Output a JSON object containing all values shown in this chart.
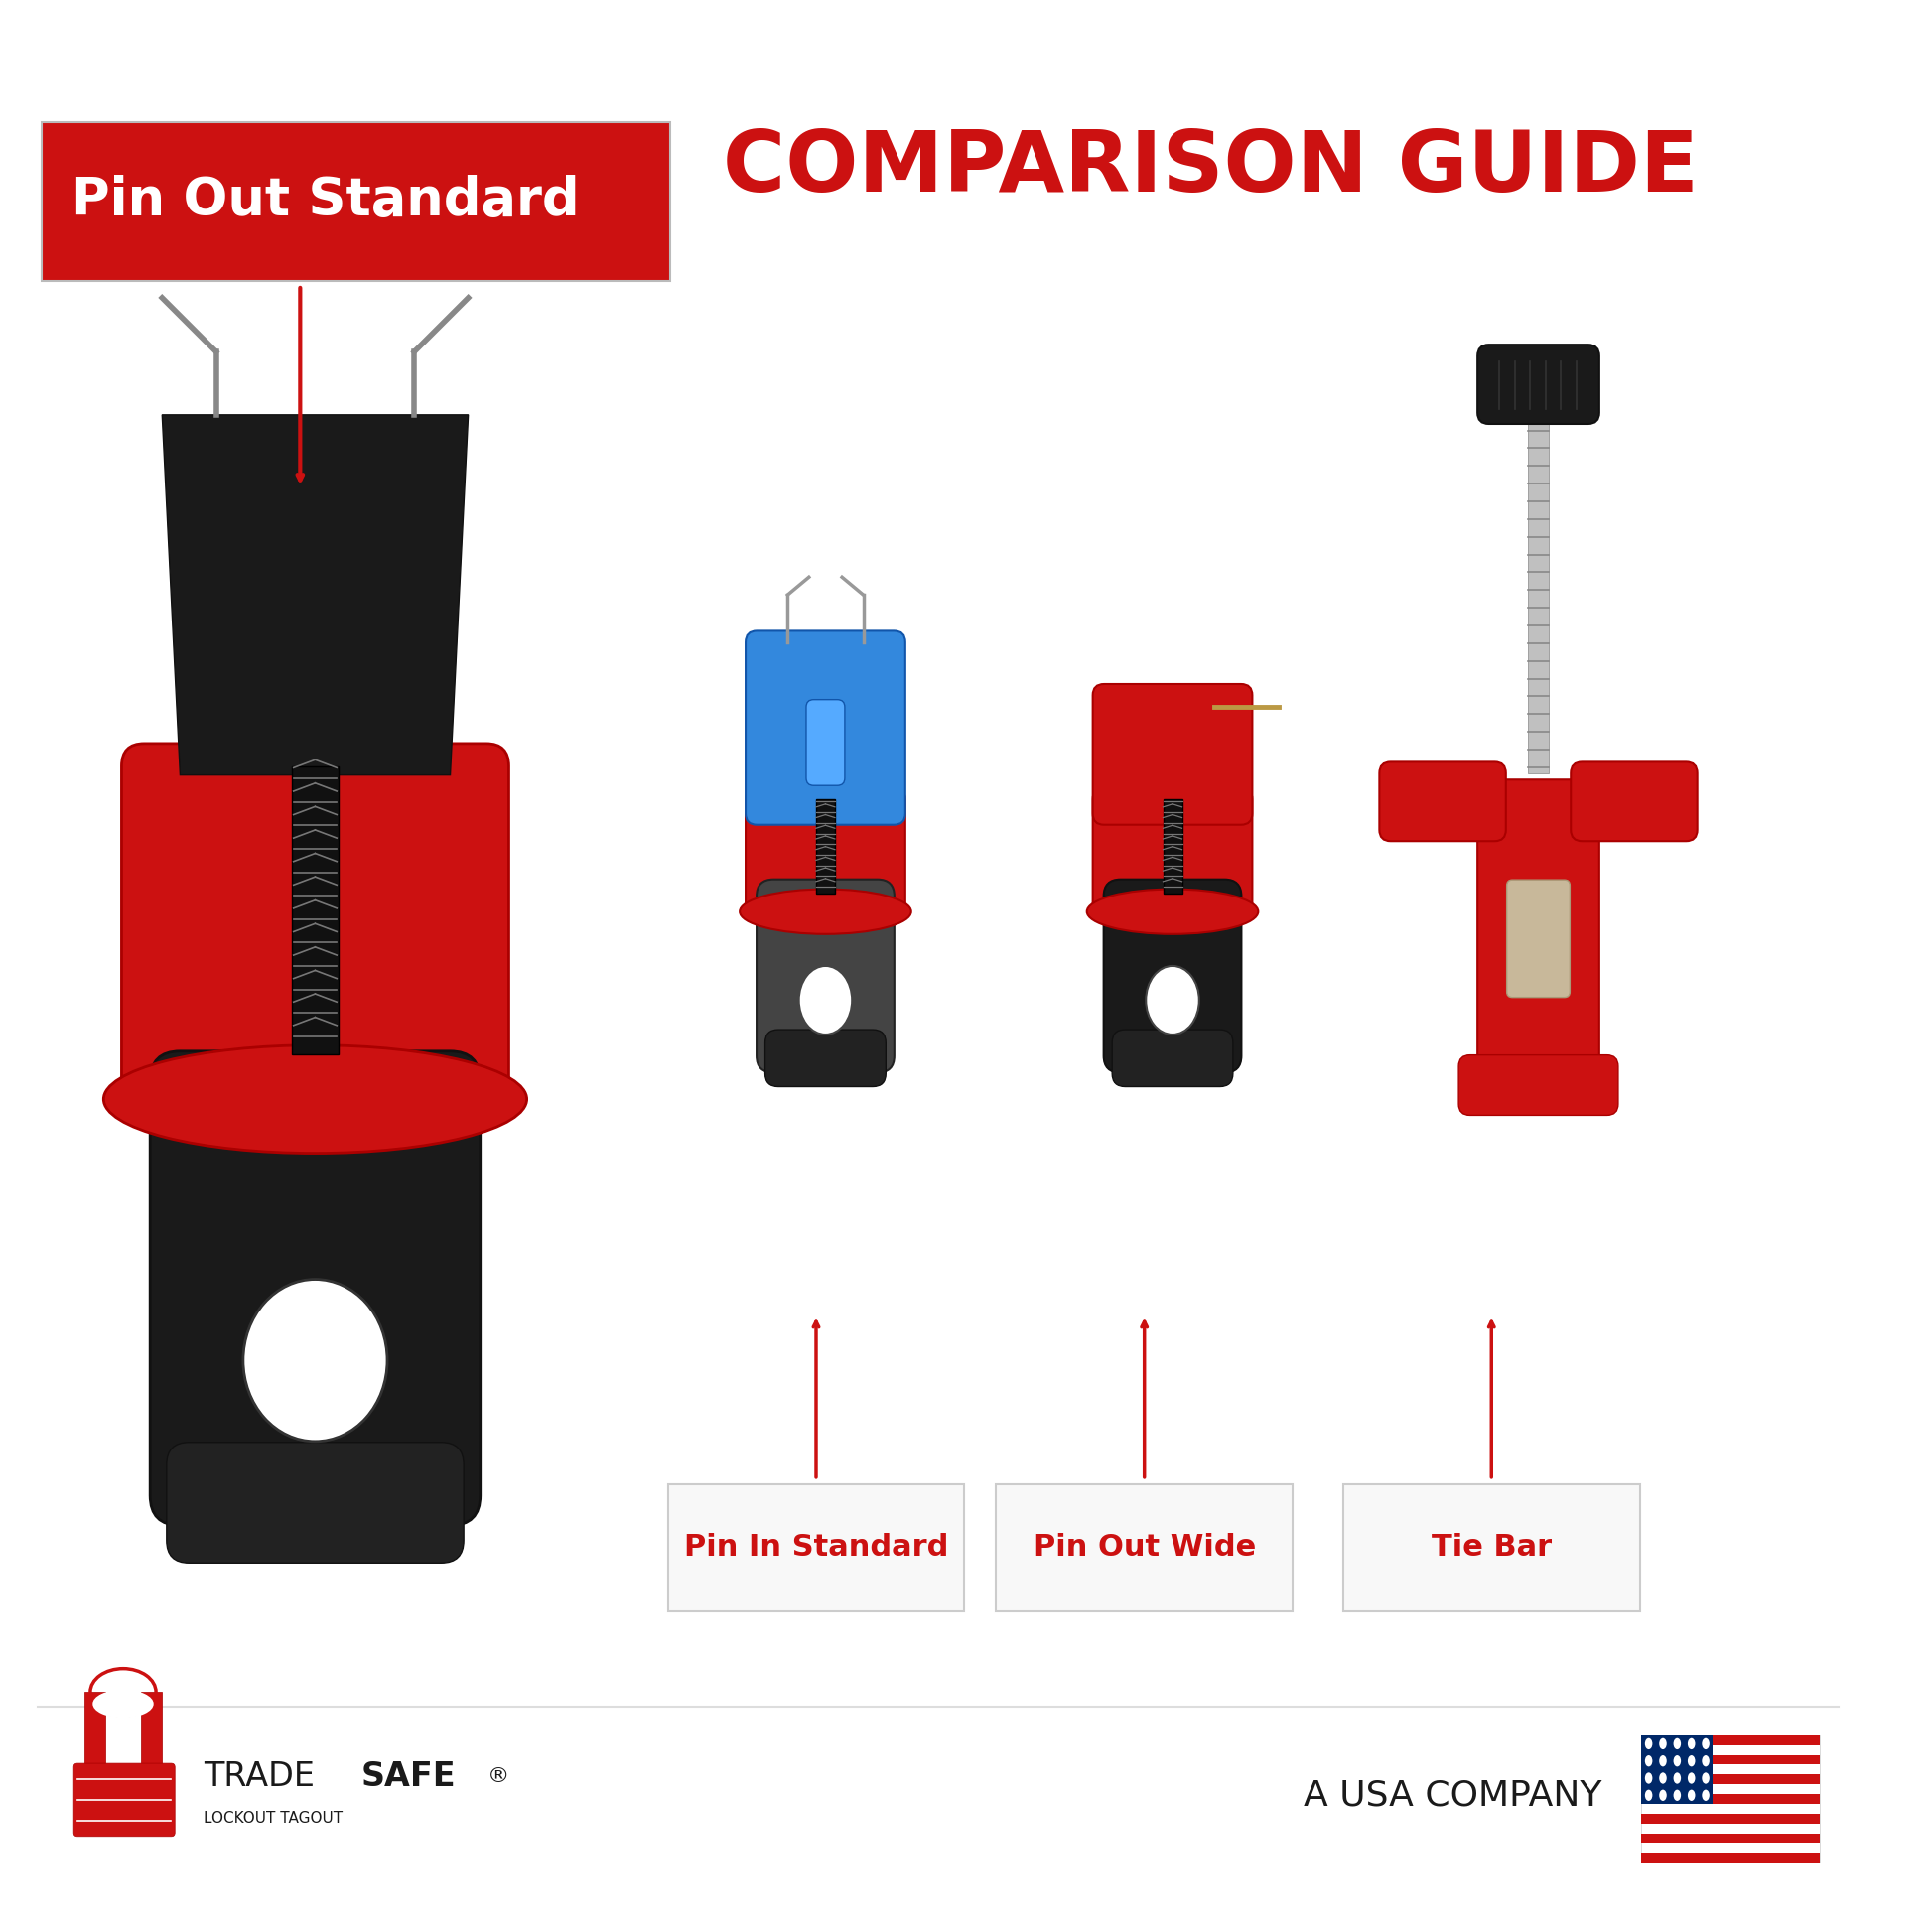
{
  "title": "COMPARISON GUIDE",
  "title_color": "#CC1111",
  "background_color": "#FFFFFF",
  "pin_out_label": "Pin Out Standard",
  "sub_labels": [
    "Pin In Standard",
    "Pin Out Wide",
    "Tie Bar"
  ],
  "sub_label_color": "#CC1111",
  "usa_company_text": "A USA COMPANY",
  "border_color": "#CCCCCC",
  "red": "#CC1111",
  "black": "#1A1A1A",
  "blue": "#3388DD",
  "gray_dark": "#333333",
  "gray_mid": "#666666",
  "gray_light": "#AAAAAA",
  "spring_color": "#444444",
  "metal_color": "#999999",
  "white": "#FFFFFF"
}
